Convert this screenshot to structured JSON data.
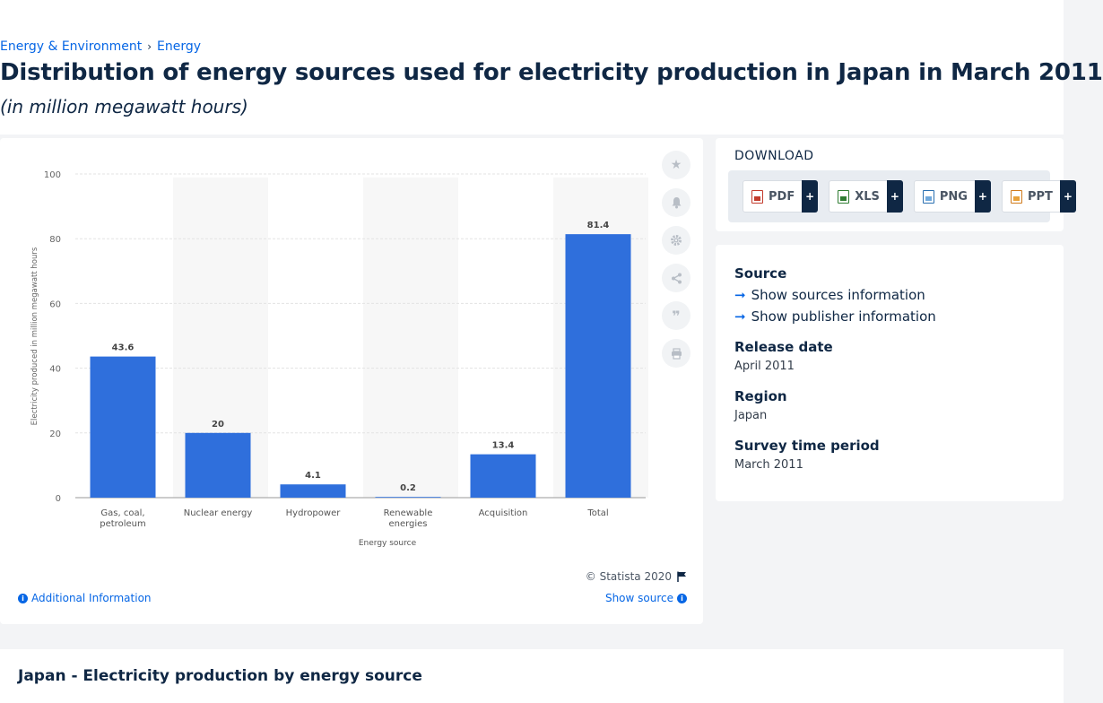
{
  "breadcrumb": [
    "Energy & Environment",
    "Energy"
  ],
  "page": {
    "title": "Distribution of energy sources used for electricity production in Japan in March 2011",
    "subtitle": "(in million megawatt hours)"
  },
  "chart_data": {
    "type": "bar",
    "categories": [
      "Gas, coal, petroleum",
      "Nuclear energy",
      "Hydropower",
      "Renewable energies",
      "Acquisition",
      "Total"
    ],
    "category_lines": [
      [
        "Gas, coal,",
        "petroleum"
      ],
      [
        "Nuclear energy"
      ],
      [
        "Hydropower"
      ],
      [
        "Renewable",
        "energies"
      ],
      [
        "Acquisition"
      ],
      [
        "Total"
      ]
    ],
    "values": [
      43.6,
      20,
      4.1,
      0.2,
      13.4,
      81.4
    ],
    "value_labels": [
      "43.6",
      "20",
      "4.1",
      "0.2",
      "13.4",
      "81.4"
    ],
    "ylim": [
      0,
      100
    ],
    "yticks": [
      0,
      20,
      40,
      60,
      80,
      100
    ],
    "xlabel": "Energy source",
    "ylabel": "Electricity produced in million megawatt hours",
    "grid": true,
    "bar_color": "#2f6fdc"
  },
  "chart_footer": {
    "copyright": "© Statista 2020",
    "additional_info": "Additional Information",
    "show_source": "Show source"
  },
  "tools": [
    "star-icon",
    "bell-icon",
    "gear-icon",
    "share-icon",
    "quote-icon",
    "print-icon"
  ],
  "download": {
    "title": "DOWNLOAD",
    "buttons": [
      {
        "label": "PDF",
        "plus": "+"
      },
      {
        "label": "XLS",
        "plus": "+"
      },
      {
        "label": "PNG",
        "plus": "+"
      },
      {
        "label": "PPT",
        "plus": "+"
      }
    ]
  },
  "source_panel": {
    "source_heading": "Source",
    "show_sources": "Show sources information",
    "show_publisher": "Show publisher information",
    "release_heading": "Release date",
    "release_value": "April 2011",
    "region_heading": "Region",
    "region_value": "Japan",
    "survey_heading": "Survey time period",
    "survey_value": "March 2011"
  },
  "related": {
    "title": "Japan - Electricity production by energy source"
  }
}
